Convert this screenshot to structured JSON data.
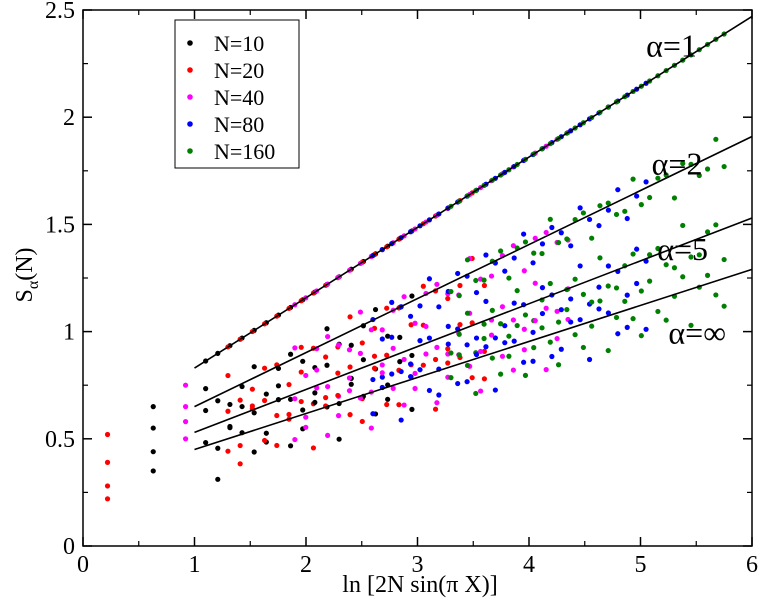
{
  "chart_data": {
    "type": "scatter",
    "title": "",
    "xlabel": "ln [2N sin(π X)]",
    "ylabel_main": "S",
    "ylabel_sub": "α",
    "ylabel_tail": "(N)",
    "xlim": [
      0,
      6
    ],
    "ylim": [
      0,
      2.5
    ],
    "x_ticks": [
      0,
      1,
      2,
      3,
      4,
      5,
      6
    ],
    "x_tick_labels": [
      "0",
      "1",
      "2",
      "3",
      "4",
      "5",
      "6"
    ],
    "y_ticks": [
      0,
      0.5,
      1,
      1.5,
      2,
      2.5
    ],
    "y_tick_labels": [
      "0",
      "0.5",
      "1",
      "1.5",
      "2",
      "2.5"
    ],
    "grid": false,
    "legend_position": "top-left",
    "series": [
      {
        "name": "N=10",
        "color": "#000000",
        "sizes": [
          10
        ]
      },
      {
        "name": "N=20",
        "color": "#ff0000",
        "sizes": [
          20
        ]
      },
      {
        "name": "N=40",
        "color": "#ff00ff",
        "sizes": [
          40
        ]
      },
      {
        "name": "N=80",
        "color": "#0000ff",
        "sizes": [
          80
        ]
      },
      {
        "name": "N=160",
        "color": "#008000",
        "sizes": [
          160
        ]
      }
    ],
    "fit_lines": [
      {
        "label": "α=1",
        "alpha": 1,
        "x_range": [
          1,
          6
        ],
        "y_range": [
          0.83,
          2.47
        ],
        "label_at": [
          5.05,
          2.33
        ]
      },
      {
        "label": "α=2",
        "alpha": 2,
        "x_range": [
          1,
          6
        ],
        "y_range": [
          0.65,
          1.91
        ],
        "label_at": [
          5.1,
          1.78
        ]
      },
      {
        "label": "α=5",
        "alpha": 5,
        "x_range": [
          1,
          6
        ],
        "y_range": [
          0.53,
          1.53
        ],
        "label_at": [
          5.15,
          1.38
        ]
      },
      {
        "label": "α=∞",
        "alpha": "inf",
        "x_range": [
          1,
          6
        ],
        "y_range": [
          0.45,
          1.29
        ],
        "label_at": [
          5.25,
          0.99
        ]
      }
    ],
    "curve_offsets": [
      0,
      0.26,
      0.42,
      0.53
    ],
    "isolated_points": [
      {
        "x": 0.22,
        "y": [
          0.52,
          0.39,
          0.28,
          0.22
        ],
        "color": "#ff0000"
      },
      {
        "x": 0.63,
        "y": [
          0.65,
          0.55,
          0.44,
          0.35
        ],
        "color": "#000000"
      },
      {
        "x": 0.92,
        "y": [
          0.75,
          0.65,
          0.58,
          0.5
        ],
        "color": "#ff00ff"
      }
    ]
  }
}
